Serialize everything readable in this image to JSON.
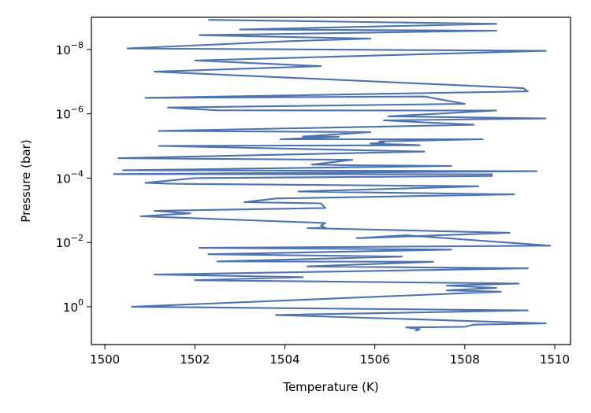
{
  "chart_data": {
    "type": "line",
    "xlabel": "Temperature (K)",
    "ylabel": "Pressure (bar)",
    "xlim": [
      1499.7,
      1510.35
    ],
    "ylim": [
      15,
      1e-09
    ],
    "yscale": "log",
    "grid": false,
    "x_ticks": [
      1500,
      1502,
      1504,
      1506,
      1508,
      1510
    ],
    "x_tick_labels": [
      "1500",
      "1502",
      "1504",
      "1506",
      "1508",
      "1510"
    ],
    "y_ticks": [
      1,
      0.01,
      0.0001,
      1e-06,
      1e-08
    ],
    "y_tick_labels": [
      {
        "base": "10",
        "exp": "0"
      },
      {
        "base": "10",
        "exp": "−2"
      },
      {
        "base": "10",
        "exp": "−4"
      },
      {
        "base": "10",
        "exp": "−6"
      },
      {
        "base": "10",
        "exp": "−8"
      }
    ],
    "series": [
      {
        "color": "#4c72b0",
        "x": [
          1502.3,
          1508.7,
          1503.0,
          1508.7,
          1502.1,
          1505.9,
          1504.1,
          1500.5,
          1509.8,
          1502.0,
          1504.8,
          1501.1,
          1508.4,
          1509.3,
          1509.4,
          1500.9,
          1507.1,
          1508.0,
          1501.4,
          1502.5,
          1508.7,
          1506.3,
          1509.8,
          1506.2,
          1508.2,
          1501.2,
          1505.9,
          1504.4,
          1505.2,
          1503.9,
          1508.4,
          1506.1,
          1506.2,
          1505.9,
          1507.0,
          1501.2,
          1507.1,
          1500.3,
          1505.5,
          1504.6,
          1505.5,
          1507.7,
          1500.4,
          1509.6,
          1500.2,
          1508.6,
          1508.6,
          1502.0,
          1500.9,
          1501.5,
          1508.3,
          1504.3,
          1509.1,
          1503.8,
          1503.1,
          1504.8,
          1504.9,
          1501.1,
          1501.9,
          1500.8,
          1504.9,
          1504.8,
          1504.9,
          1504.5,
          1509.0,
          1505.6,
          1506.7,
          1509.9,
          1502.1,
          1507.7,
          1502.3,
          1506.6,
          1502.5,
          1507.3,
          1504.5,
          1509.4,
          1501.1,
          1504.4,
          1502.0,
          1509.2,
          1507.6,
          1508.7,
          1507.6,
          1508.8,
          1500.6,
          1509.4,
          1503.8,
          1509.8,
          1508.2,
          1508.0,
          1506.7,
          1507.0,
          1506.9
        ],
        "y": [
          1.2e-09,
          1.6e-09,
          2.4e-09,
          2.6e-09,
          3.6e-09,
          4.6e-09,
          5.5e-09,
          9.3e-09,
          1.1e-08,
          2.2e-08,
          3.3e-08,
          4.9e-08,
          1.4e-07,
          1.6e-07,
          2e-07,
          3.2e-07,
          2.9e-07,
          4.9e-07,
          6.4e-07,
          7.8e-07,
          7.9e-07,
          1.2e-06,
          1.4e-06,
          1.6e-06,
          2.2e-06,
          3.4e-06,
          3.7e-06,
          5.1e-06,
          5.2e-06,
          6.2e-06,
          6.2e-06,
          7.2e-06,
          7.9e-06,
          8.4e-06,
          9.5e-06,
          1e-05,
          1.5e-05,
          2.4e-05,
          2.7e-05,
          3.8e-05,
          4e-05,
          4.2e-05,
          5.7e-05,
          6.1e-05,
          7.5e-05,
          7.6e-05,
          8.6e-05,
          0.0001,
          0.00014,
          0.00015,
          0.00018,
          0.00026,
          0.00032,
          0.00043,
          0.00056,
          0.00061,
          0.00085,
          0.00104,
          0.00125,
          0.00154,
          0.0025,
          0.003,
          0.0035,
          0.0036,
          0.005,
          0.0074,
          0.006,
          0.0126,
          0.0148,
          0.0167,
          0.0233,
          0.0276,
          0.039,
          0.04,
          0.056,
          0.064,
          0.1,
          0.12,
          0.15,
          0.19,
          0.22,
          0.26,
          0.31,
          0.34,
          1.0,
          1.3,
          1.8,
          3.3,
          3.6,
          4.2,
          4.4,
          5.0,
          5.7
        ]
      }
    ]
  }
}
